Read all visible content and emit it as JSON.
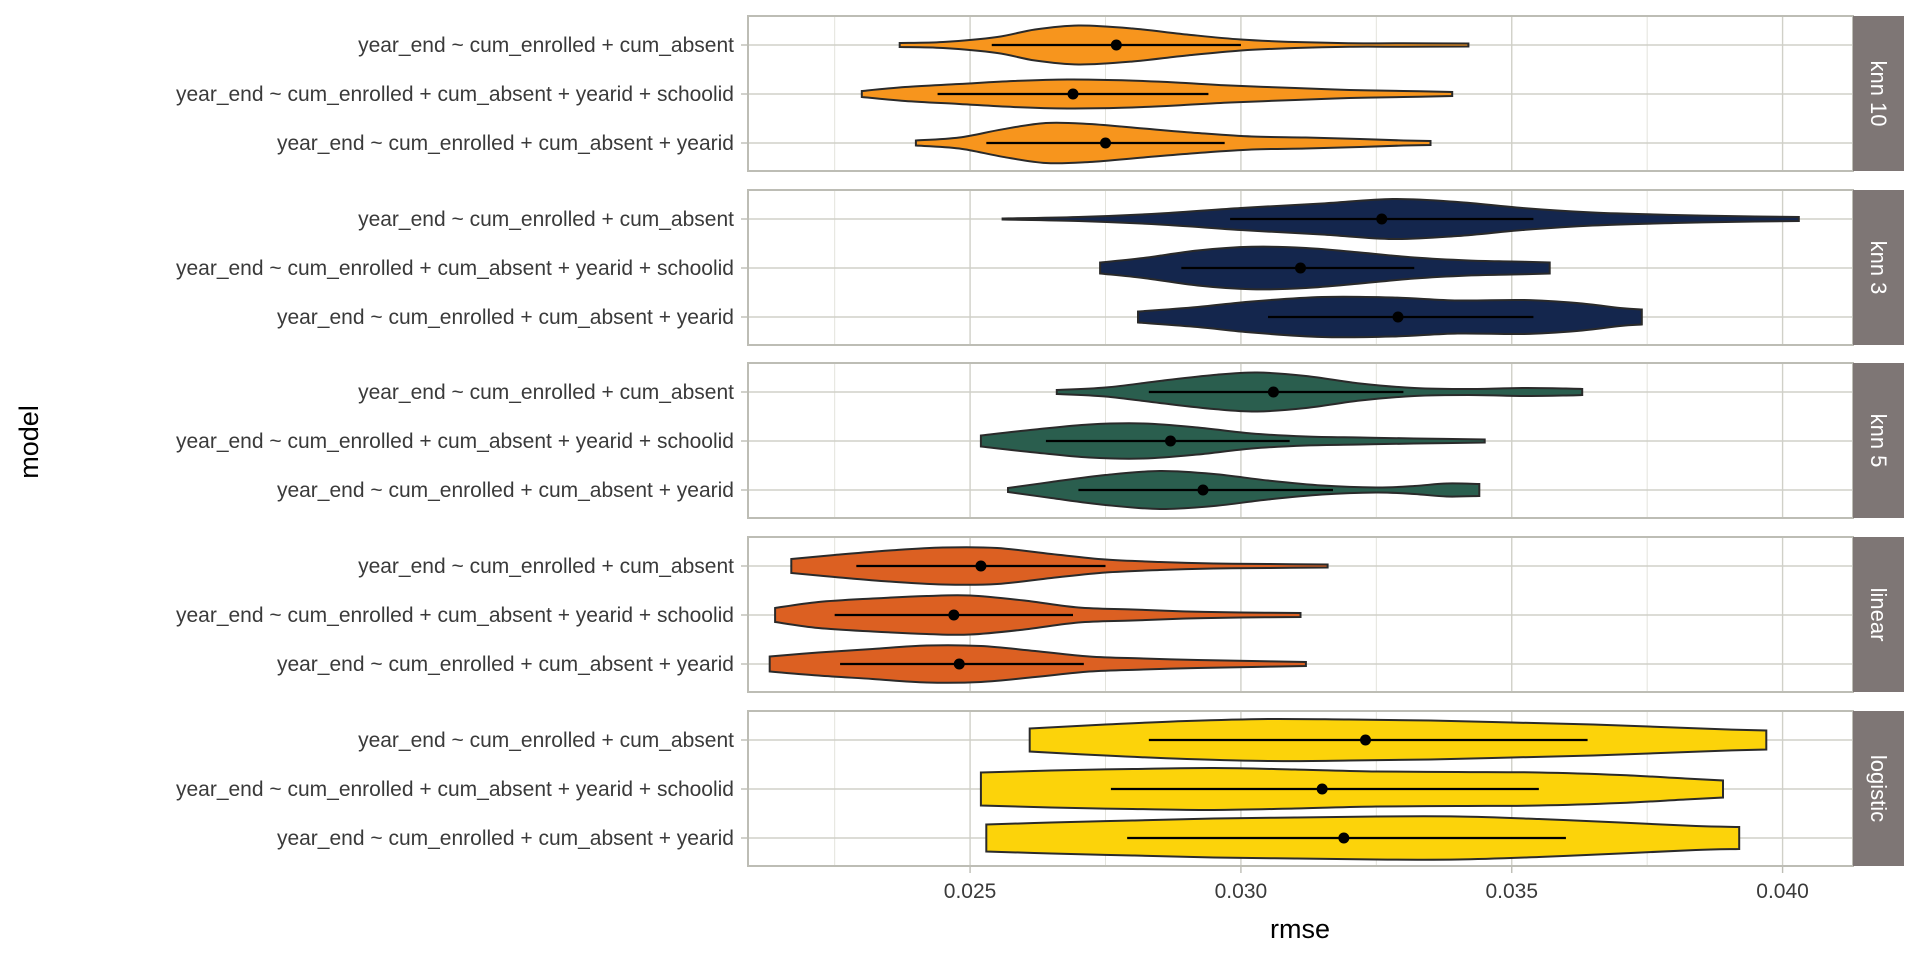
{
  "chart_data": {
    "type": "violin",
    "xlabel": "rmse",
    "ylabel": "model",
    "xlim": [
      0.0209,
      0.0413
    ],
    "x_ticks": [
      "0.025",
      "0.030",
      "0.035",
      "0.040"
    ],
    "x_tick_values": [
      0.025,
      0.03,
      0.035,
      0.04
    ],
    "x_minor_values": [
      0.0225,
      0.0275,
      0.0325,
      0.0375
    ],
    "grid": true,
    "models": [
      "year_end ~ cum_enrolled + cum_absent",
      "year_end ~ cum_enrolled + cum_absent + yearid + schoolid",
      "year_end ~ cum_enrolled + cum_absent + yearid"
    ],
    "facets": [
      {
        "name": "knn 10",
        "color": "#F7951D",
        "violins": [
          {
            "model": 0,
            "min": 0.0237,
            "max": 0.0342,
            "mean": 0.0277,
            "sd_low": 0.0254,
            "sd_high": 0.03,
            "profile": [
              [
                0.0237,
                0.08
              ],
              [
                0.0245,
                0.12
              ],
              [
                0.0255,
                0.32
              ],
              [
                0.0262,
                0.62
              ],
              [
                0.027,
                0.78
              ],
              [
                0.028,
                0.66
              ],
              [
                0.029,
                0.42
              ],
              [
                0.03,
                0.22
              ],
              [
                0.031,
                0.12
              ],
              [
                0.032,
                0.07
              ],
              [
                0.033,
                0.07
              ],
              [
                0.0342,
                0.06
              ]
            ]
          },
          {
            "model": 1,
            "min": 0.023,
            "max": 0.0339,
            "mean": 0.0269,
            "sd_low": 0.0244,
            "sd_high": 0.0294,
            "profile": [
              [
                0.023,
                0.12
              ],
              [
                0.0238,
                0.28
              ],
              [
                0.0248,
                0.4
              ],
              [
                0.0258,
                0.52
              ],
              [
                0.0268,
                0.58
              ],
              [
                0.0278,
                0.55
              ],
              [
                0.0288,
                0.46
              ],
              [
                0.0298,
                0.34
              ],
              [
                0.031,
                0.24
              ],
              [
                0.032,
                0.16
              ],
              [
                0.033,
                0.12
              ],
              [
                0.0339,
                0.08
              ]
            ]
          },
          {
            "model": 2,
            "min": 0.024,
            "max": 0.0335,
            "mean": 0.0275,
            "sd_low": 0.0253,
            "sd_high": 0.0297,
            "profile": [
              [
                0.024,
                0.1
              ],
              [
                0.0248,
                0.22
              ],
              [
                0.0256,
                0.55
              ],
              [
                0.0264,
                0.8
              ],
              [
                0.0272,
                0.76
              ],
              [
                0.0282,
                0.58
              ],
              [
                0.0292,
                0.4
              ],
              [
                0.0302,
                0.26
              ],
              [
                0.0312,
                0.22
              ],
              [
                0.0322,
                0.16
              ],
              [
                0.033,
                0.1
              ],
              [
                0.0335,
                0.08
              ]
            ]
          }
        ]
      },
      {
        "name": "knn 3",
        "color": "#14264D",
        "violins": [
          {
            "model": 0,
            "min": 0.0256,
            "max": 0.0403,
            "mean": 0.0326,
            "sd_low": 0.0298,
            "sd_high": 0.0354,
            "profile": [
              [
                0.0256,
                0.02
              ],
              [
                0.027,
                0.08
              ],
              [
                0.0285,
                0.22
              ],
              [
                0.03,
                0.44
              ],
              [
                0.0315,
                0.62
              ],
              [
                0.0328,
                0.8
              ],
              [
                0.034,
                0.68
              ],
              [
                0.0352,
                0.44
              ],
              [
                0.0365,
                0.26
              ],
              [
                0.038,
                0.16
              ],
              [
                0.0395,
                0.1
              ],
              [
                0.0403,
                0.08
              ]
            ]
          },
          {
            "model": 1,
            "min": 0.0274,
            "max": 0.0357,
            "mean": 0.0311,
            "sd_low": 0.0289,
            "sd_high": 0.0332,
            "profile": [
              [
                0.0274,
                0.22
              ],
              [
                0.0282,
                0.4
              ],
              [
                0.0292,
                0.7
              ],
              [
                0.0302,
                0.85
              ],
              [
                0.0312,
                0.8
              ],
              [
                0.0322,
                0.62
              ],
              [
                0.0332,
                0.42
              ],
              [
                0.0342,
                0.3
              ],
              [
                0.035,
                0.26
              ],
              [
                0.0357,
                0.22
              ]
            ]
          },
          {
            "model": 2,
            "min": 0.0281,
            "max": 0.0374,
            "mean": 0.0329,
            "sd_low": 0.0305,
            "sd_high": 0.0354,
            "profile": [
              [
                0.0281,
                0.22
              ],
              [
                0.0292,
                0.4
              ],
              [
                0.0302,
                0.62
              ],
              [
                0.0315,
                0.8
              ],
              [
                0.0328,
                0.78
              ],
              [
                0.034,
                0.66
              ],
              [
                0.0352,
                0.68
              ],
              [
                0.0362,
                0.56
              ],
              [
                0.037,
                0.36
              ],
              [
                0.0374,
                0.3
              ]
            ]
          }
        ]
      },
      {
        "name": "knn 5",
        "color": "#2A5E4E",
        "violins": [
          {
            "model": 0,
            "min": 0.0266,
            "max": 0.0363,
            "mean": 0.0306,
            "sd_low": 0.0283,
            "sd_high": 0.033,
            "profile": [
              [
                0.0266,
                0.08
              ],
              [
                0.0275,
                0.18
              ],
              [
                0.0285,
                0.44
              ],
              [
                0.0295,
                0.68
              ],
              [
                0.0303,
                0.78
              ],
              [
                0.0312,
                0.64
              ],
              [
                0.0322,
                0.34
              ],
              [
                0.0332,
                0.16
              ],
              [
                0.0342,
                0.12
              ],
              [
                0.0352,
                0.16
              ],
              [
                0.036,
                0.14
              ],
              [
                0.0363,
                0.12
              ]
            ]
          },
          {
            "model": 1,
            "min": 0.0252,
            "max": 0.0345,
            "mean": 0.0287,
            "sd_low": 0.0264,
            "sd_high": 0.0309,
            "profile": [
              [
                0.0252,
                0.22
              ],
              [
                0.0262,
                0.46
              ],
              [
                0.0272,
                0.66
              ],
              [
                0.0282,
                0.7
              ],
              [
                0.0292,
                0.54
              ],
              [
                0.0302,
                0.3
              ],
              [
                0.0312,
                0.18
              ],
              [
                0.0322,
                0.14
              ],
              [
                0.0332,
                0.1
              ],
              [
                0.0345,
                0.06
              ]
            ]
          },
          {
            "model": 2,
            "min": 0.0257,
            "max": 0.0344,
            "mean": 0.0293,
            "sd_low": 0.027,
            "sd_high": 0.0317,
            "profile": [
              [
                0.0257,
                0.08
              ],
              [
                0.0265,
                0.32
              ],
              [
                0.0275,
                0.6
              ],
              [
                0.0285,
                0.76
              ],
              [
                0.0295,
                0.64
              ],
              [
                0.0305,
                0.38
              ],
              [
                0.0315,
                0.18
              ],
              [
                0.0325,
                0.1
              ],
              [
                0.0332,
                0.16
              ],
              [
                0.0338,
                0.26
              ],
              [
                0.0344,
                0.24
              ]
            ]
          }
        ]
      },
      {
        "name": "linear",
        "color": "#DC6022",
        "violins": [
          {
            "model": 0,
            "min": 0.0217,
            "max": 0.0316,
            "mean": 0.0252,
            "sd_low": 0.0229,
            "sd_high": 0.0275,
            "profile": [
              [
                0.0217,
                0.28
              ],
              [
                0.0225,
                0.44
              ],
              [
                0.0235,
                0.62
              ],
              [
                0.0245,
                0.74
              ],
              [
                0.0255,
                0.72
              ],
              [
                0.0265,
                0.48
              ],
              [
                0.0275,
                0.26
              ],
              [
                0.0285,
                0.16
              ],
              [
                0.0295,
                0.1
              ],
              [
                0.0305,
                0.08
              ],
              [
                0.0316,
                0.06
              ]
            ]
          },
          {
            "model": 1,
            "min": 0.0214,
            "max": 0.0311,
            "mean": 0.0247,
            "sd_low": 0.0225,
            "sd_high": 0.0269,
            "profile": [
              [
                0.0214,
                0.28
              ],
              [
                0.0222,
                0.52
              ],
              [
                0.0232,
                0.66
              ],
              [
                0.0242,
                0.76
              ],
              [
                0.025,
                0.78
              ],
              [
                0.026,
                0.58
              ],
              [
                0.027,
                0.3
              ],
              [
                0.028,
                0.22
              ],
              [
                0.029,
                0.14
              ],
              [
                0.03,
                0.1
              ],
              [
                0.0311,
                0.08
              ]
            ]
          },
          {
            "model": 2,
            "min": 0.0213,
            "max": 0.0312,
            "mean": 0.0248,
            "sd_low": 0.0226,
            "sd_high": 0.0271,
            "profile": [
              [
                0.0213,
                0.3
              ],
              [
                0.0222,
                0.46
              ],
              [
                0.0232,
                0.6
              ],
              [
                0.0242,
                0.74
              ],
              [
                0.0252,
                0.72
              ],
              [
                0.0262,
                0.52
              ],
              [
                0.0272,
                0.3
              ],
              [
                0.0282,
                0.22
              ],
              [
                0.0292,
                0.16
              ],
              [
                0.0302,
                0.12
              ],
              [
                0.0312,
                0.08
              ]
            ]
          }
        ]
      },
      {
        "name": "logistic",
        "color": "#FCD30A",
        "violins": [
          {
            "model": 0,
            "min": 0.0261,
            "max": 0.0397,
            "mean": 0.0323,
            "sd_low": 0.0283,
            "sd_high": 0.0364,
            "profile": [
              [
                0.0261,
                0.46
              ],
              [
                0.0275,
                0.62
              ],
              [
                0.029,
                0.76
              ],
              [
                0.0305,
                0.84
              ],
              [
                0.032,
                0.82
              ],
              [
                0.0335,
                0.78
              ],
              [
                0.035,
                0.7
              ],
              [
                0.0365,
                0.62
              ],
              [
                0.038,
                0.5
              ],
              [
                0.039,
                0.42
              ],
              [
                0.0397,
                0.38
              ]
            ]
          },
          {
            "model": 1,
            "min": 0.0252,
            "max": 0.0389,
            "mean": 0.0315,
            "sd_low": 0.0276,
            "sd_high": 0.0355,
            "profile": [
              [
                0.0252,
                0.66
              ],
              [
                0.0265,
                0.74
              ],
              [
                0.028,
                0.8
              ],
              [
                0.0295,
                0.84
              ],
              [
                0.031,
                0.78
              ],
              [
                0.0325,
                0.7
              ],
              [
                0.034,
                0.68
              ],
              [
                0.0355,
                0.66
              ],
              [
                0.037,
                0.56
              ],
              [
                0.0382,
                0.42
              ],
              [
                0.0389,
                0.34
              ]
            ]
          },
          {
            "model": 2,
            "min": 0.0253,
            "max": 0.0392,
            "mean": 0.0319,
            "sd_low": 0.0279,
            "sd_high": 0.036,
            "profile": [
              [
                0.0253,
                0.54
              ],
              [
                0.0265,
                0.62
              ],
              [
                0.028,
                0.7
              ],
              [
                0.0295,
                0.78
              ],
              [
                0.031,
                0.82
              ],
              [
                0.0325,
                0.86
              ],
              [
                0.034,
                0.86
              ],
              [
                0.0355,
                0.76
              ],
              [
                0.037,
                0.62
              ],
              [
                0.0384,
                0.48
              ],
              [
                0.0392,
                0.44
              ]
            ]
          }
        ]
      }
    ]
  }
}
